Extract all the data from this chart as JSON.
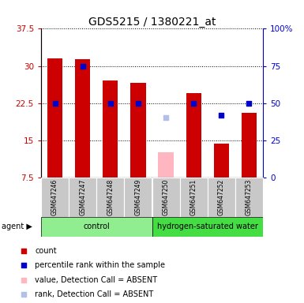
{
  "title": "GDS5215 / 1380221_at",
  "samples": [
    "GSM647246",
    "GSM647247",
    "GSM647248",
    "GSM647249",
    "GSM647250",
    "GSM647251",
    "GSM647252",
    "GSM647253"
  ],
  "red_bars": [
    31.5,
    31.4,
    27.0,
    26.5,
    null,
    24.5,
    14.3,
    20.5
  ],
  "blue_dots_pct": [
    50,
    75,
    50,
    50,
    null,
    50,
    42,
    50
  ],
  "pink_bar": [
    null,
    null,
    null,
    null,
    12.5,
    null,
    null,
    null
  ],
  "lavender_dot_pct": [
    null,
    null,
    null,
    null,
    40,
    null,
    null,
    null
  ],
  "ylim_left": [
    7.5,
    37.5
  ],
  "yticks_left": [
    7.5,
    15,
    22.5,
    30,
    37.5
  ],
  "yticks_right": [
    0,
    25,
    50,
    75,
    100
  ],
  "bar_color_red": "#CC0000",
  "dot_color_blue": "#0000CC",
  "bar_color_pink": "#FFB6C1",
  "dot_color_lavender": "#B0C0E8",
  "bar_width": 0.55,
  "dot_size": 22,
  "title_fontsize": 10,
  "axis_color_left": "#CC0000",
  "axis_color_right": "#0000CC",
  "legend_items": [
    "count",
    "percentile rank within the sample",
    "value, Detection Call = ABSENT",
    "rank, Detection Call = ABSENT"
  ],
  "group_label_color": "#90EE90",
  "green_control": "#90EE90",
  "green_hydro": "#44DD44"
}
